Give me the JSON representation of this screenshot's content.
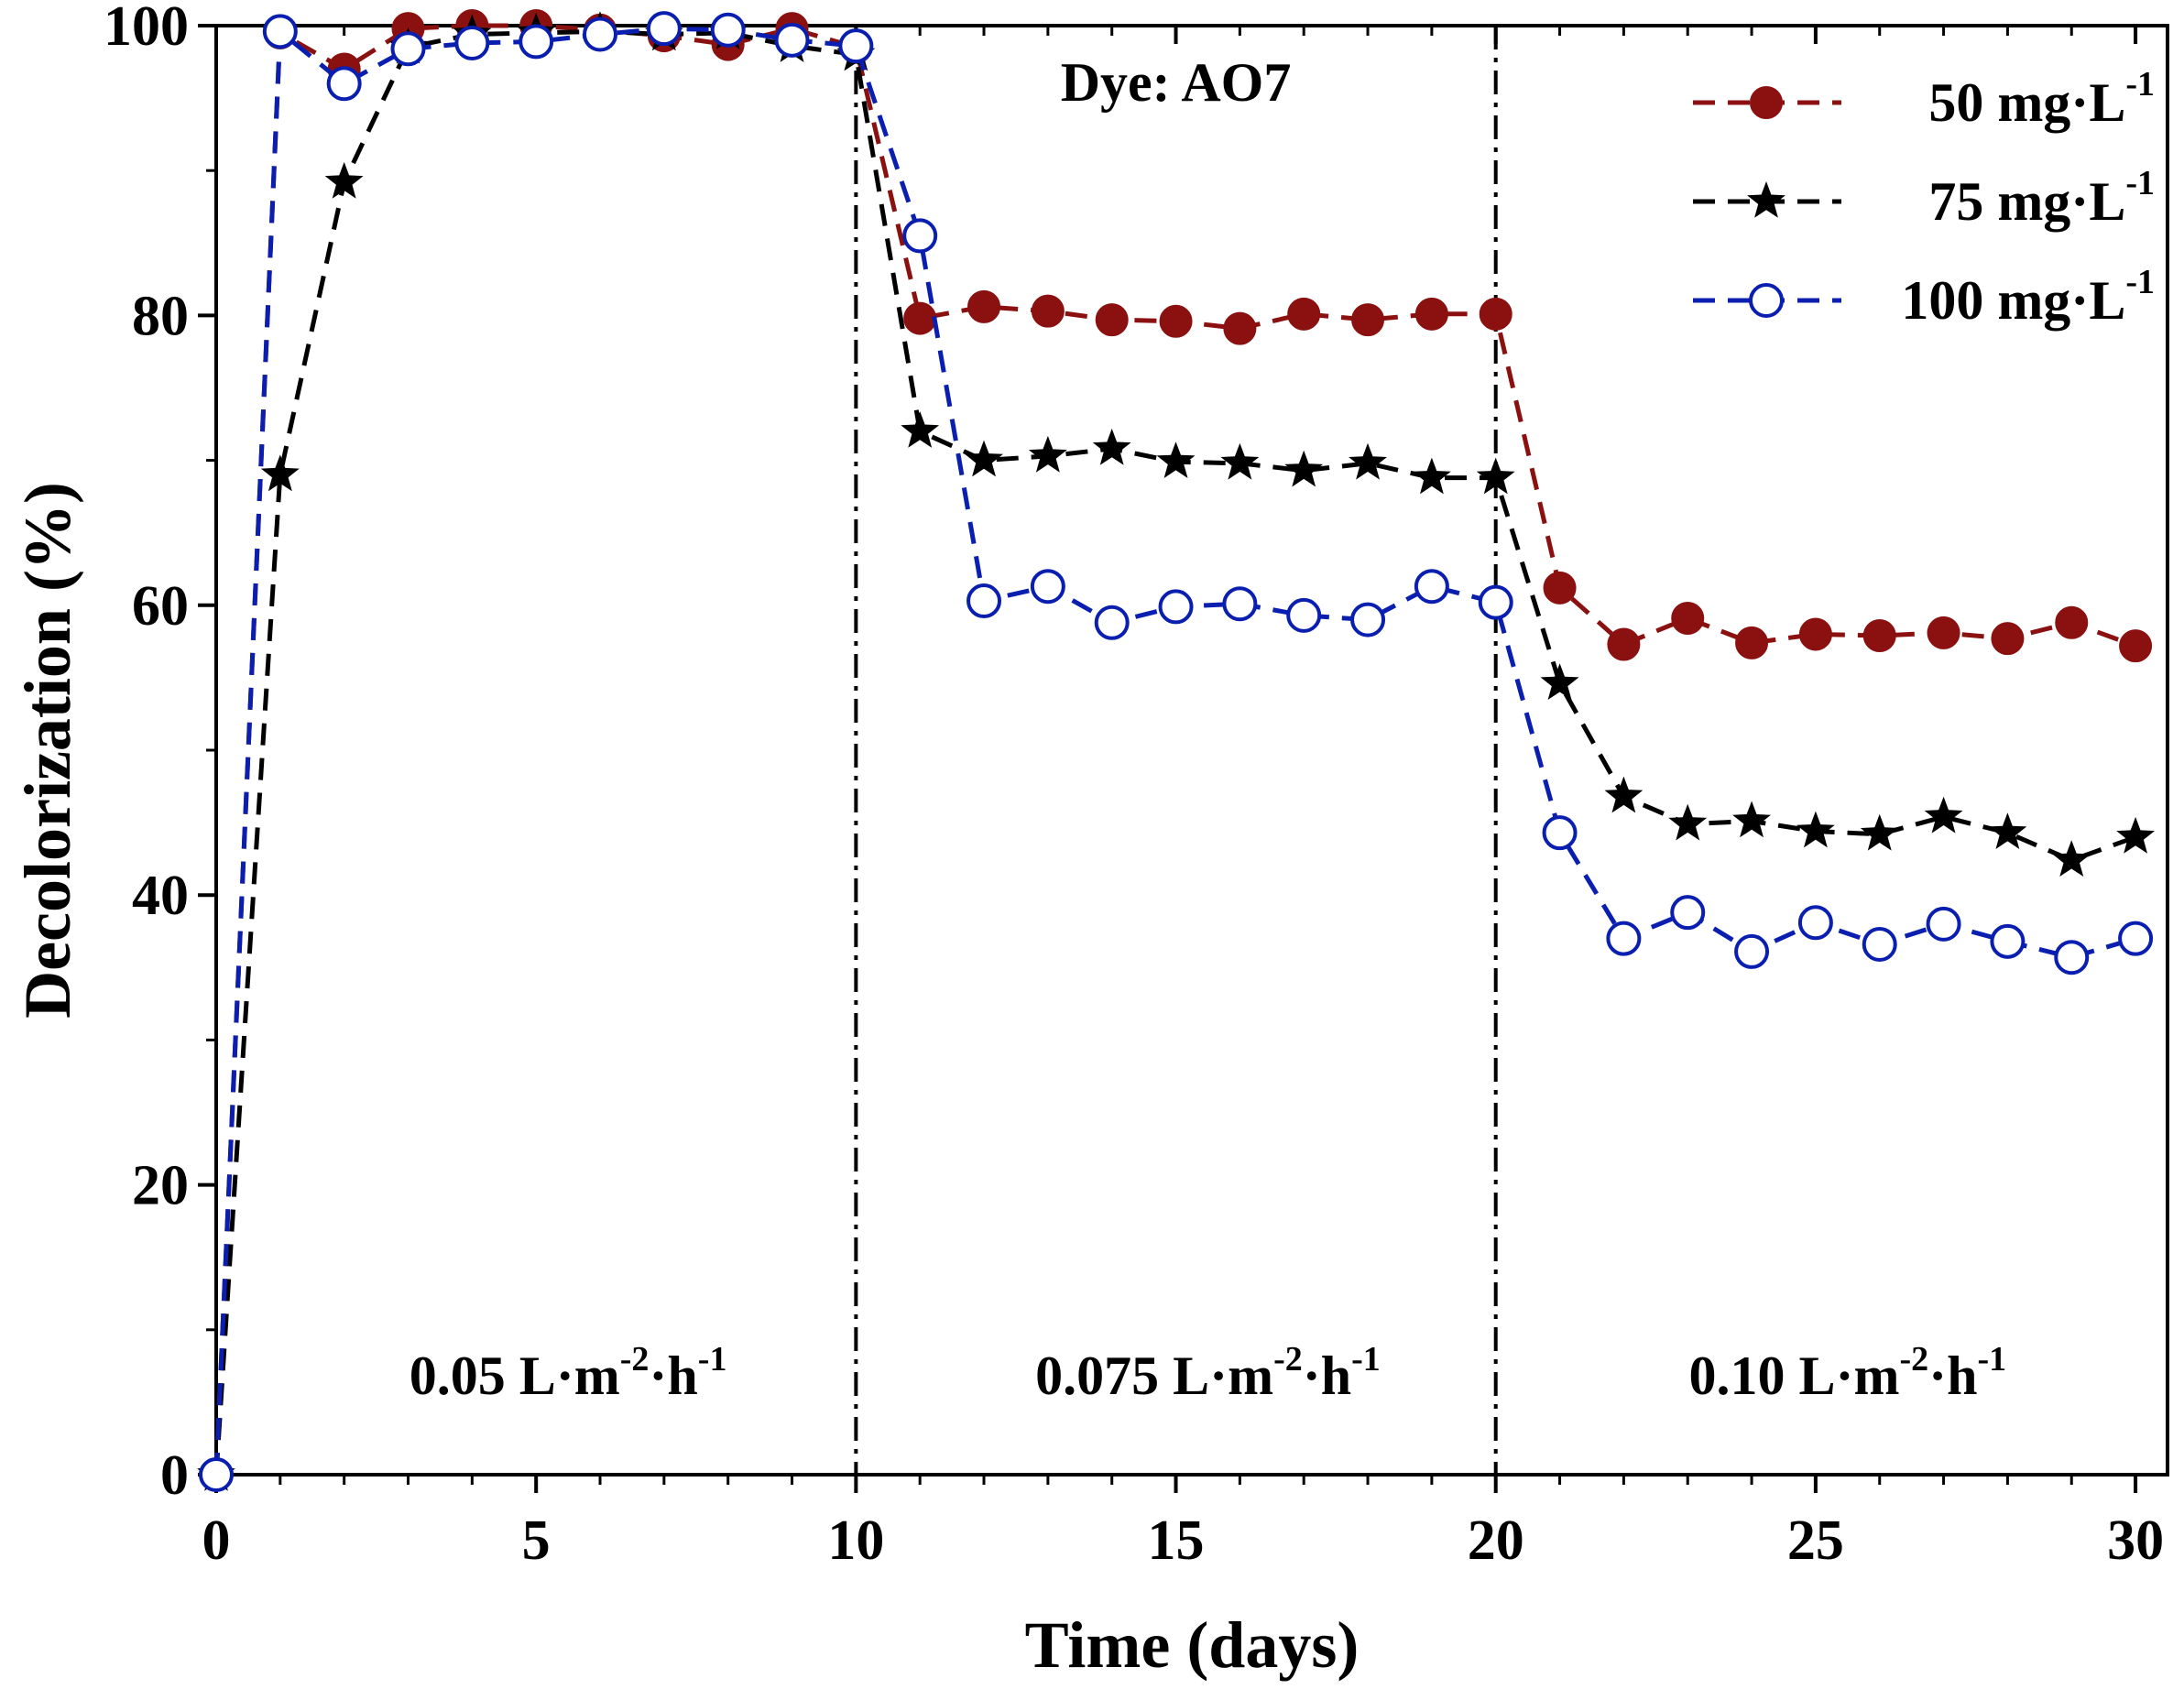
{
  "chart_data": {
    "type": "line",
    "xlabel": "Time (days)",
    "ylabel": "Decolorization (%)",
    "xlim": [
      0,
      30.5
    ],
    "ylim": [
      0,
      100
    ],
    "xticks": [
      0,
      5,
      10,
      15,
      20,
      25,
      30
    ],
    "yticks": [
      0,
      20,
      40,
      60,
      80,
      100
    ],
    "title_annotation": "Dye: AO7",
    "phase_dividers": [
      10,
      20
    ],
    "phases": [
      {
        "label": "0.05 L·m",
        "exp1": "-2",
        "mid": "·h",
        "exp2": "-1",
        "center_x": 5.5
      },
      {
        "label": "0.075 L·m",
        "exp1": "-2",
        "mid": "·h",
        "exp2": "-1",
        "center_x": 15.5
      },
      {
        "label": "0.10 L·m",
        "exp1": "-2",
        "mid": "·h",
        "exp2": "-1",
        "center_x": 25.5
      }
    ],
    "legend_position": "top-right",
    "x": [
      0,
      1,
      2,
      3,
      4,
      5,
      6,
      7,
      8,
      9,
      10,
      11,
      12,
      13,
      14,
      15,
      16,
      17,
      18,
      19,
      20,
      21,
      22,
      23,
      24,
      25,
      26,
      27,
      28,
      29,
      30
    ],
    "series": [
      {
        "name": "50 mg·L",
        "name_sup": "-1",
        "marker": "filled-circle",
        "color": "#8b1010",
        "values": [
          0,
          99.5,
          97,
          99.8,
          100,
          100,
          99.7,
          99.3,
          98.7,
          99.8,
          98.5,
          79.8,
          80.6,
          80.3,
          79.7,
          79.6,
          79.1,
          80.1,
          79.7,
          80.1,
          80.1,
          61.2,
          57.3,
          59.1,
          57.4,
          58,
          57.9,
          58.1,
          57.7,
          58.8,
          57.2
        ]
      },
      {
        "name": "75 mg·L",
        "name_sup": "-1",
        "marker": "star",
        "color": "#000000",
        "values": [
          0,
          69,
          89.2,
          98.5,
          99.4,
          99.5,
          99.6,
          99.4,
          99.5,
          98.6,
          98,
          72,
          70,
          70.3,
          70.8,
          69.9,
          69.8,
          69.3,
          69.8,
          68.8,
          68.8,
          54.6,
          46.8,
          44.9,
          45.1,
          44.4,
          44.2,
          45.4,
          44.3,
          42.4,
          44
        ]
      },
      {
        "name": "100 mg·L",
        "name_sup": "-1",
        "marker": "open-circle",
        "color": "#0a1fb0",
        "values": [
          0,
          99.6,
          96,
          98.4,
          98.8,
          98.9,
          99.4,
          99.8,
          99.7,
          99,
          98.6,
          85.5,
          60.3,
          61.3,
          58.8,
          59.9,
          60.1,
          59.3,
          59,
          61.3,
          60.2,
          44.3,
          37,
          38.8,
          36.1,
          38.1,
          36.6,
          38,
          36.8,
          35.7,
          37
        ]
      }
    ]
  }
}
